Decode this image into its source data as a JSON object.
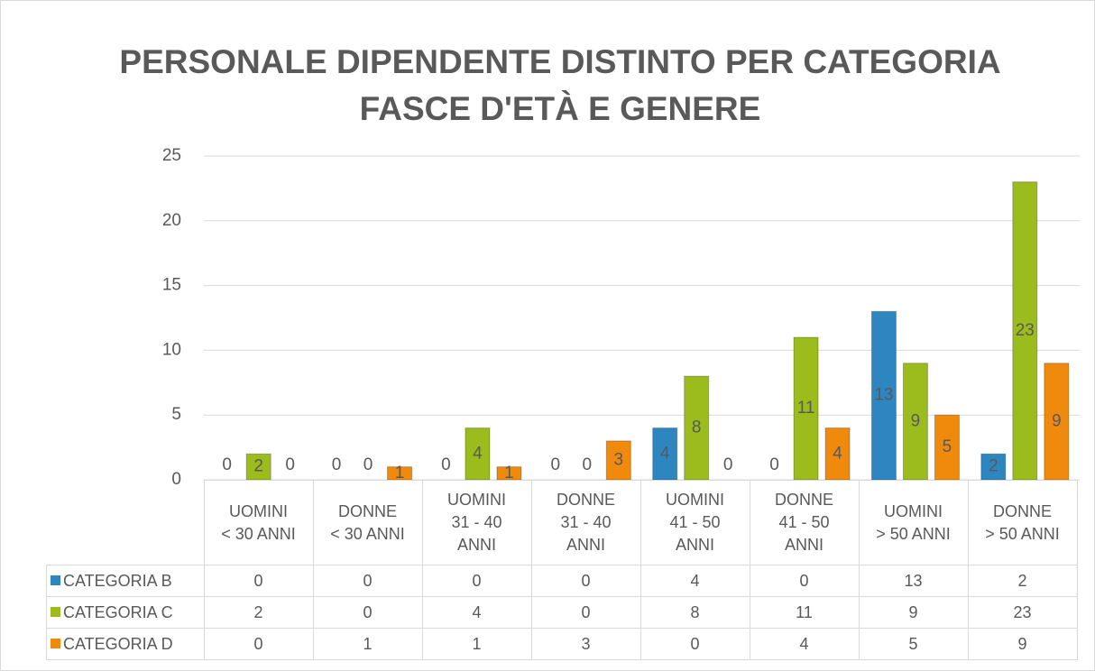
{
  "chart_data": {
    "type": "bar",
    "title": "PERSONALE DIPENDENTE DISTINTO PER CATEGORIA\nFASCE D'ETÀ E GENERE",
    "categories": [
      "UOMINI\n< 30 ANNI",
      "DONNE\n< 30 ANNI",
      "UOMINI\n31 - 40\nANNI",
      "DONNE\n31 - 40\nANNI",
      "UOMINI\n41 - 50\nANNI",
      "DONNE\n41 - 50\nANNI",
      "UOMINI\n> 50 ANNI",
      "DONNE\n> 50 ANNI"
    ],
    "series": [
      {
        "name": "CATEGORIA B",
        "color": "#2e86c1",
        "values": [
          0,
          0,
          0,
          0,
          4,
          0,
          13,
          2
        ]
      },
      {
        "name": "CATEGORIA C",
        "color": "#9cbb1c",
        "values": [
          2,
          0,
          4,
          0,
          8,
          11,
          9,
          23
        ]
      },
      {
        "name": "CATEGORIA D",
        "color": "#f08a0c",
        "values": [
          0,
          1,
          1,
          3,
          0,
          4,
          5,
          9
        ]
      }
    ],
    "ylim": [
      0,
      25
    ],
    "yticks": [
      0,
      5,
      10,
      15,
      20,
      25
    ],
    "grid": true
  }
}
